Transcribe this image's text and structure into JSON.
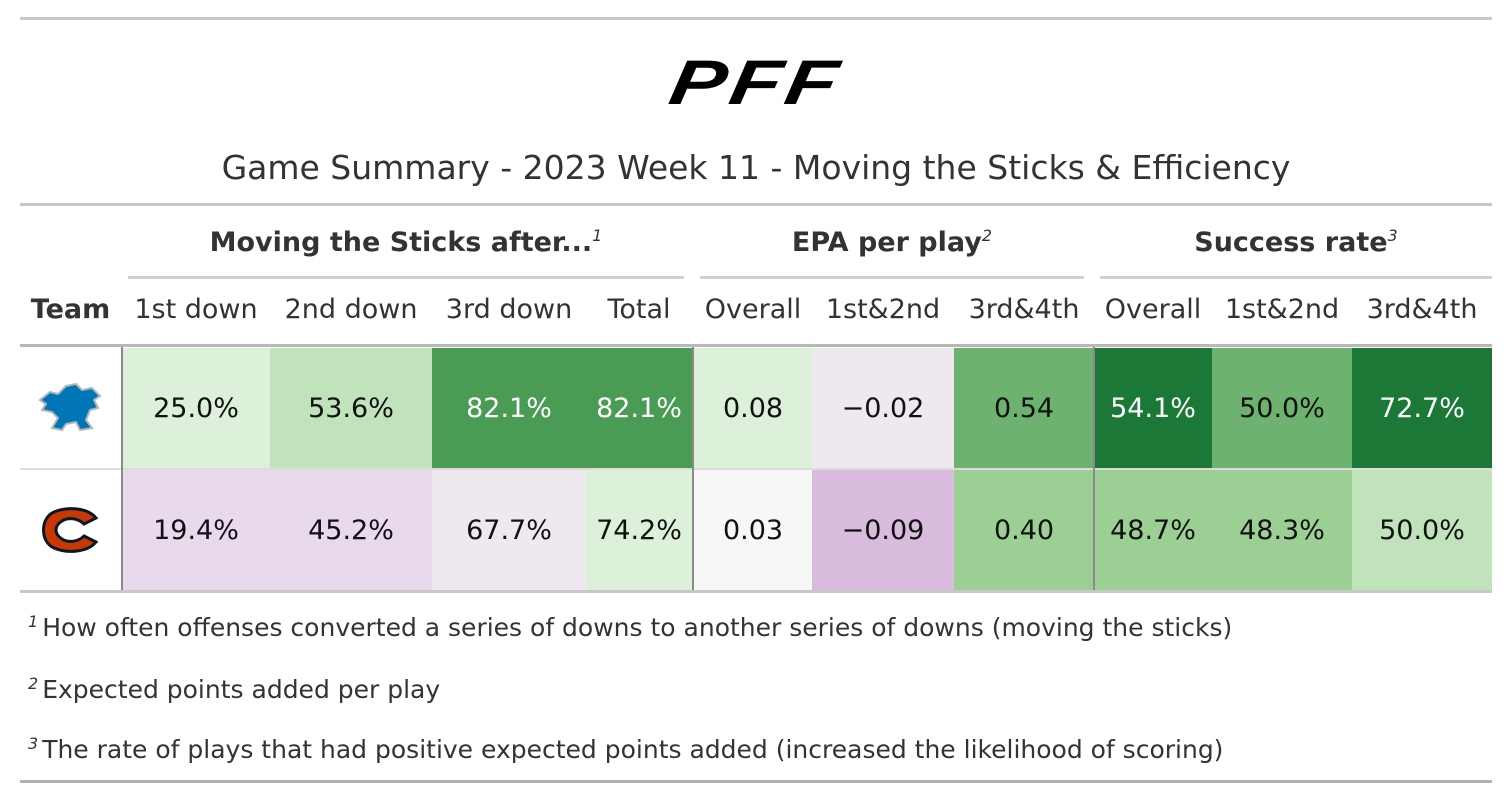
{
  "logo": "PFF",
  "title": "Game Summary - 2023 Week 11 - Moving the Sticks & Efficiency",
  "spanners": [
    {
      "label": "Moving the Sticks after...",
      "note": "1"
    },
    {
      "label": "EPA per play",
      "note": "2"
    },
    {
      "label": "Success rate",
      "note": "3"
    }
  ],
  "columns": [
    "Team",
    "1st down",
    "2nd down",
    "3rd down",
    "Total",
    "Overall",
    "1st&2nd",
    "3rd&4th",
    "Overall",
    "1st&2nd",
    "3rd&4th"
  ],
  "rows": [
    {
      "cells": [
        "25.0%",
        "53.6%",
        "82.1%",
        "82.1%",
        "0.08",
        "−0.02",
        "0.54",
        "54.1%",
        "50.0%",
        "72.7%"
      ],
      "colors": [
        "#dcf0da",
        "#c0e3bb",
        "#4a9b54",
        "#4a9b54",
        "#dcf0da",
        "#efe8f0",
        "#6db36f",
        "#1b7837",
        "#6db36f",
        "#1b7837"
      ]
    },
    {
      "cells": [
        "19.4%",
        "45.2%",
        "67.7%",
        "74.2%",
        "0.03",
        "−0.09",
        "0.40",
        "48.7%",
        "48.3%",
        "50.0%"
      ],
      "colors": [
        "#e8d9ec",
        "#e8d9ec",
        "#efe8f0",
        "#dcf0da",
        "#f7f7f7",
        "#d9bcdd",
        "#9ccf93",
        "#9ccf93",
        "#9ccf93",
        "#c0e3bb"
      ]
    }
  ],
  "footnotes": [
    {
      "mark": "1",
      "text": "How often offenses converted a series of downs to another series of downs (moving the sticks)"
    },
    {
      "mark": "2",
      "text": "Expected points added per play"
    },
    {
      "mark": "3",
      "text": "The rate of plays that had positive expected points added (increased the likelihood of scoring)"
    }
  ]
}
